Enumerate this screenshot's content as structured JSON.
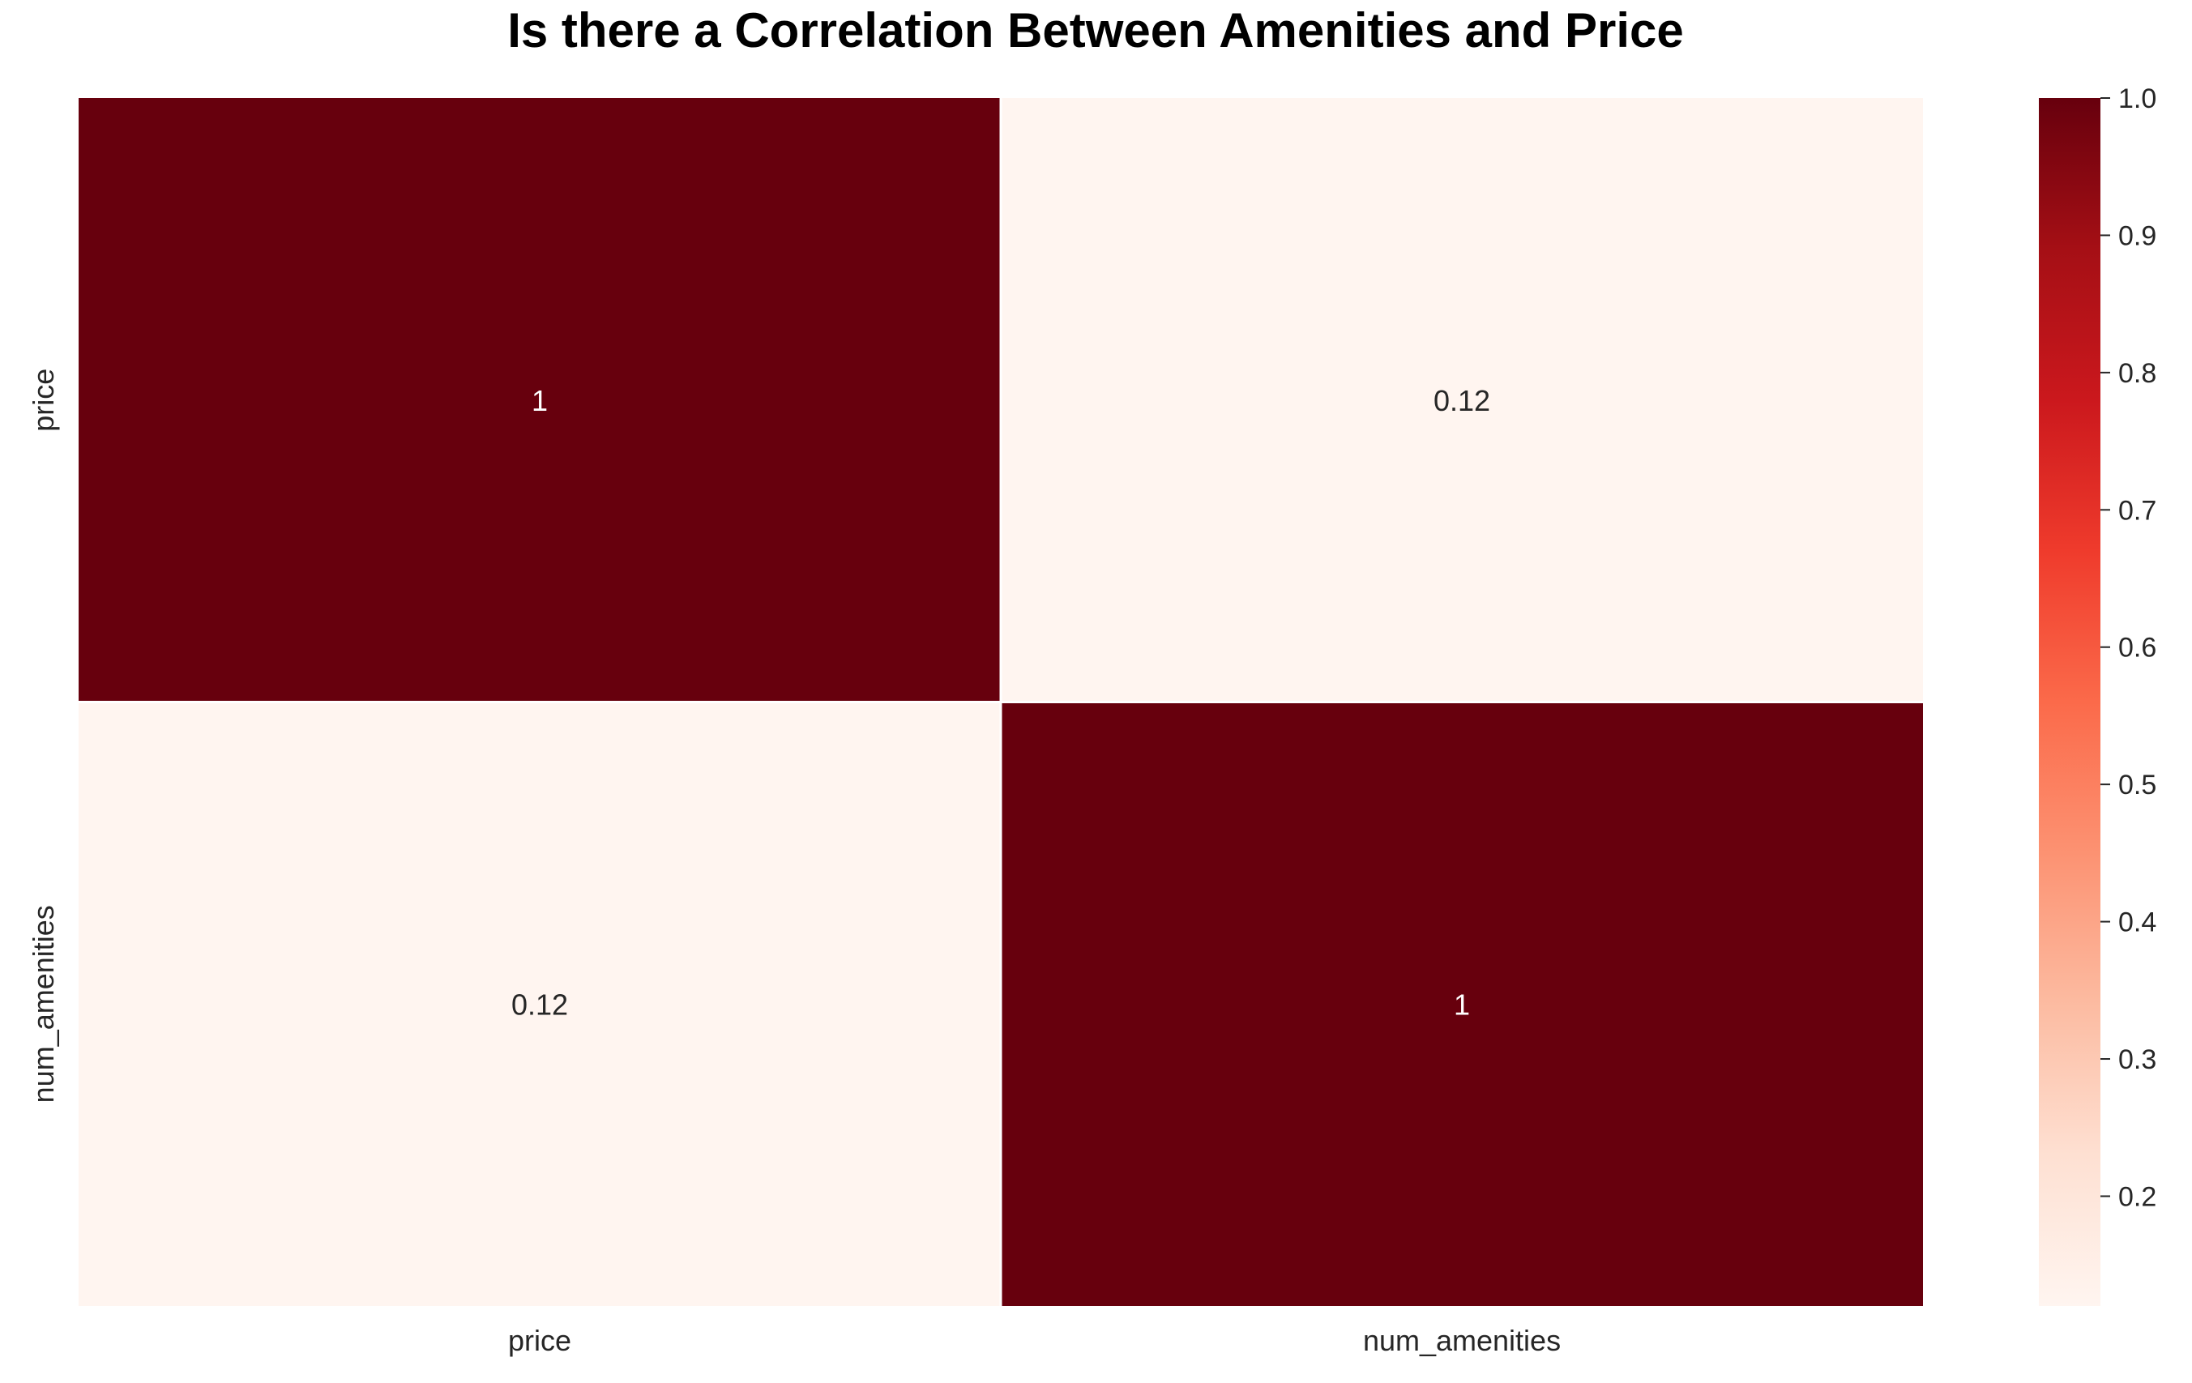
{
  "chart_data": {
    "type": "heatmap",
    "title": "Is there a Correlation Between Amenities and Price",
    "xlabel": "",
    "ylabel": "",
    "x_categories": [
      "price",
      "num_amenities"
    ],
    "y_categories": [
      "price",
      "num_amenities"
    ],
    "values": [
      [
        1.0,
        0.12
      ],
      [
        0.12,
        1.0
      ]
    ],
    "annotations": [
      [
        "1",
        "0.12"
      ],
      [
        "0.12",
        "1"
      ]
    ],
    "colormap": "Reds",
    "colorbar": {
      "min": 0.12,
      "max": 1.0,
      "ticks": [
        0.2,
        0.3,
        0.4,
        0.5,
        0.6,
        0.7,
        0.8,
        0.9,
        1.0
      ],
      "tick_labels": [
        "0.2",
        "0.3",
        "0.4",
        "0.5",
        "0.6",
        "0.7",
        "0.8",
        "0.9",
        "1.0"
      ],
      "placement": "right"
    },
    "colors": {
      "high": "#67000d",
      "low": "#fff5f0",
      "grid": "#ffffff",
      "text_on_dark": "#ffffff",
      "text_on_light": "#262626",
      "tick_text": "#262626",
      "title_text": "#000000"
    },
    "grid": false
  }
}
